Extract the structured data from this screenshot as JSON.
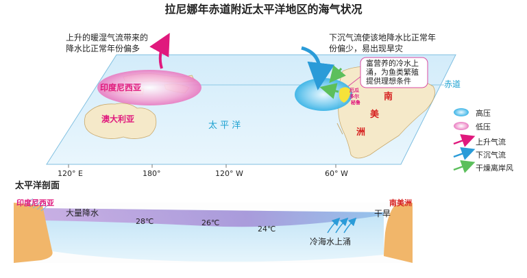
{
  "title": "拉尼娜年赤道附近太平洋地区的海气状况",
  "notes": {
    "rising_air": [
      "上升的暖湿气流带来的",
      "降水比正常年份偏多"
    ],
    "sinking_air": [
      "下沉气流使该地降水比正常年",
      "份偏少，易出现旱灾"
    ],
    "cold_water": [
      "富营养的冷水上",
      "涌，为鱼类繁殖",
      "提供理想条件"
    ]
  },
  "map_labels": {
    "indonesia": "印度尼西亚",
    "australia": "澳大利亚",
    "pacific": "太 平 洋",
    "south_america": [
      "南",
      "美",
      "洲"
    ],
    "peru_fishery": [
      "厄瓜",
      "多尔",
      "秘鲁"
    ],
    "equator": "赤道"
  },
  "axis_ticks": [
    "120° E",
    "180°",
    "120° W",
    "60° W"
  ],
  "legend": {
    "high": "高压",
    "low": "低压",
    "rising": "上升气流",
    "sinking": "下沉气流",
    "offshore": "干燥离岸风"
  },
  "colors": {
    "high": "#3cb4e6",
    "low": "#e879c0",
    "rising": "#e0197d",
    "sinking": "#2a9bd8",
    "offshore": "#6cc26c"
  },
  "section": {
    "title": "太平洋剖面",
    "indonesia": "印度尼西亚",
    "heavy_rain": "大量降水",
    "south_america": "南美洲",
    "drought": "干旱",
    "temps": [
      "28℃",
      "26℃",
      "24℃"
    ],
    "upwelling": "冷海水上涌"
  }
}
